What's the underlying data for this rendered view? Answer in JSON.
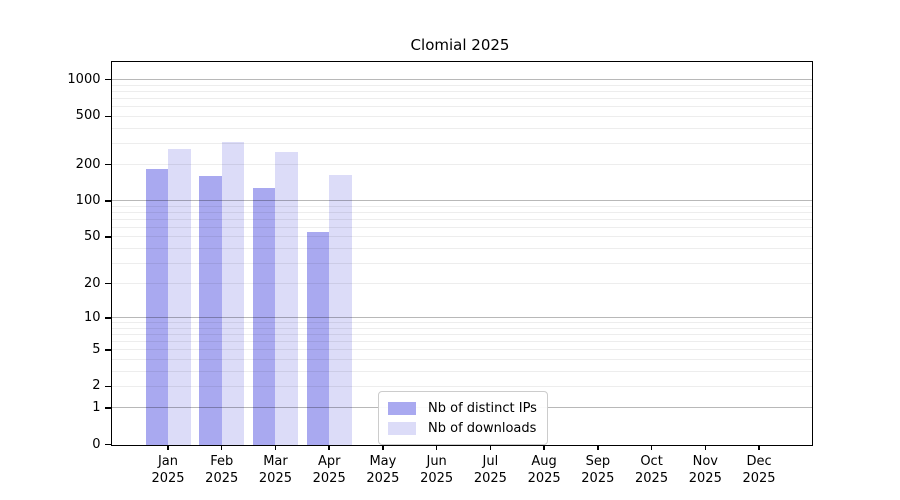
{
  "title": "Clomial 2025",
  "colors": {
    "ips": "#a9a9f0",
    "downloads": "#dcdcf8",
    "grid_major": "rgba(0,0,0,0.28)",
    "grid_minor": "rgba(0,0,0,0.07)",
    "axis": "#000000"
  },
  "legend": {
    "items": [
      {
        "label": "Nb of distinct IPs",
        "color_key": "ips"
      },
      {
        "label": "Nb of downloads",
        "color_key": "downloads"
      }
    ]
  },
  "x_axis": {
    "year": "2025"
  },
  "chart_data": {
    "type": "bar",
    "title": "Clomial 2025",
    "categories": [
      "Jan",
      "Feb",
      "Mar",
      "Apr",
      "May",
      "Jun",
      "Jul",
      "Aug",
      "Sep",
      "Oct",
      "Nov",
      "Dec"
    ],
    "year": "2025",
    "series": [
      {
        "name": "Nb of distinct IPs",
        "values": [
          182,
          160,
          127,
          55,
          null,
          null,
          null,
          null,
          null,
          null,
          null,
          null
        ]
      },
      {
        "name": "Nb of downloads",
        "values": [
          267,
          304,
          256,
          163,
          null,
          null,
          null,
          null,
          null,
          null,
          null,
          null
        ]
      }
    ],
    "yscale": "log1p",
    "yticks": [
      0,
      1,
      2,
      5,
      10,
      20,
      50,
      100,
      200,
      500,
      1000
    ],
    "minor_gridlines": [
      2,
      3,
      4,
      5,
      6,
      7,
      8,
      9,
      20,
      30,
      40,
      50,
      60,
      70,
      80,
      90,
      200,
      300,
      400,
      500,
      600,
      700,
      800,
      900
    ],
    "major_gridlines": [
      1,
      10,
      100,
      1000
    ],
    "ylim": [
      0,
      1385
    ],
    "xlabel": "",
    "ylabel": "",
    "grid": true,
    "legend_position": "lower center"
  }
}
